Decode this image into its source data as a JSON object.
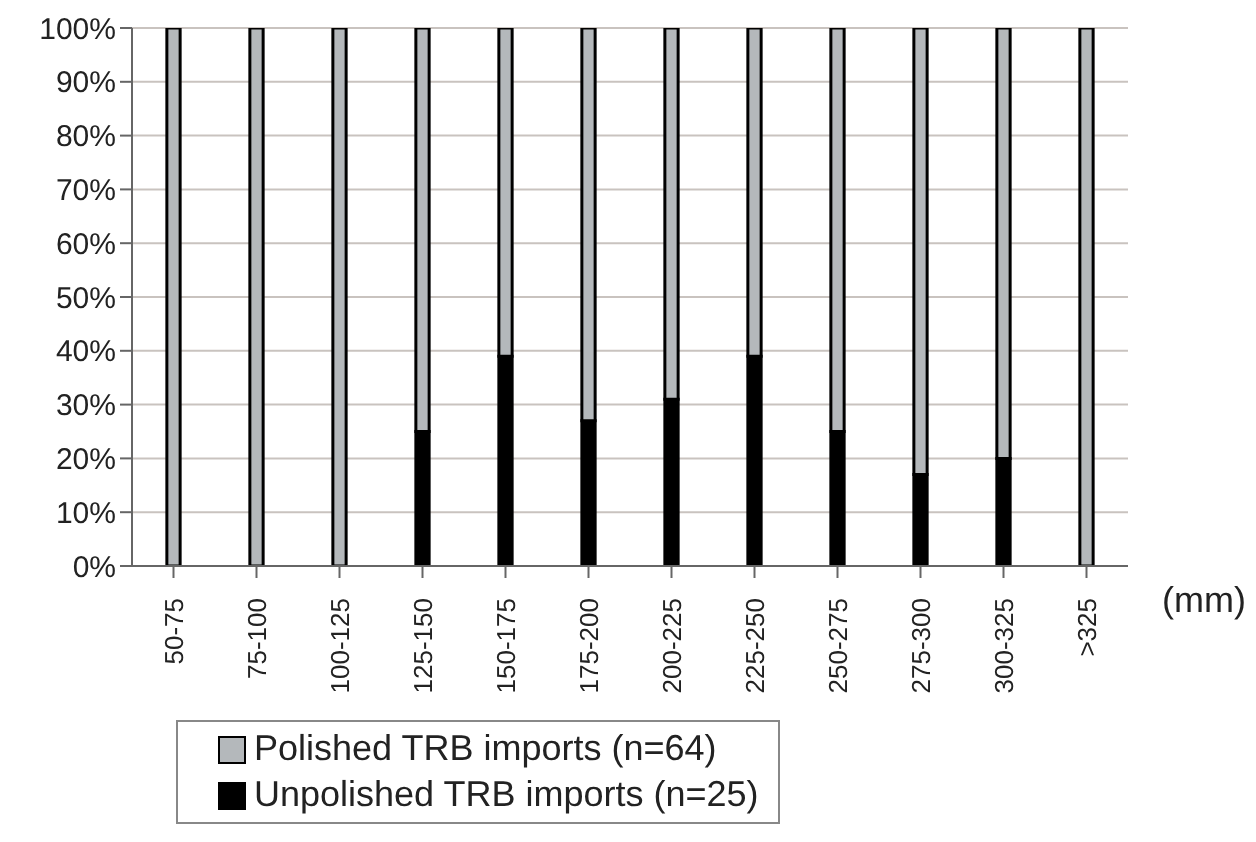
{
  "chart_data": {
    "type": "bar",
    "stacked": true,
    "xlabel": "(mm)",
    "categories": [
      "50-75",
      "75-100",
      "100-125",
      "125-150",
      "150-175",
      "175-200",
      "200-225",
      "225-250",
      "250-275",
      "275-300",
      "300-325",
      ">325"
    ],
    "series": [
      {
        "name": "Unpolished TRB imports (n=25)",
        "color": "#000000",
        "values": [
          0,
          0,
          0,
          25,
          39,
          27,
          31,
          39,
          25,
          17,
          20,
          0
        ]
      },
      {
        "name": "Polished TRB imports (n=64)",
        "color": "#b4b8bb",
        "values": [
          100,
          100,
          100,
          75,
          61,
          73,
          69,
          61,
          75,
          83,
          80,
          100
        ]
      }
    ],
    "ylim": [
      0,
      100
    ],
    "yticks": [
      {
        "value": 0,
        "label": "0%"
      },
      {
        "value": 10,
        "label": "10%"
      },
      {
        "value": 20,
        "label": "20%"
      },
      {
        "value": 30,
        "label": "30%"
      },
      {
        "value": 40,
        "label": "40%"
      },
      {
        "value": 50,
        "label": "50%"
      },
      {
        "value": 60,
        "label": "60%"
      },
      {
        "value": 70,
        "label": "70%"
      },
      {
        "value": 80,
        "label": "80%"
      },
      {
        "value": 90,
        "label": "90%"
      },
      {
        "value": 100,
        "label": "100%"
      }
    ],
    "grid": "y",
    "legend": "bottom left"
  }
}
